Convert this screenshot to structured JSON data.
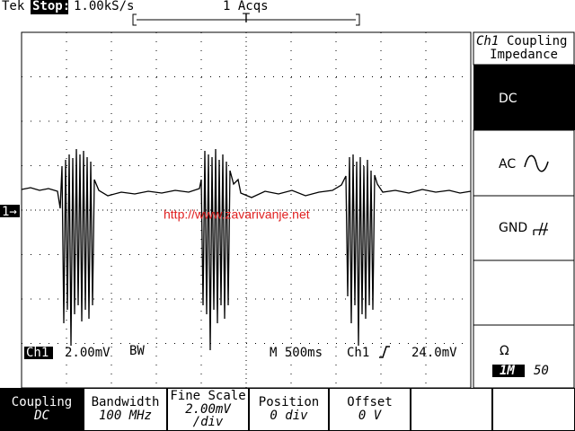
{
  "header": {
    "brand": "Tek",
    "state": "Stop:",
    "sample_rate": "1.00kS/s",
    "acquisitions": "1 Acqs",
    "trigger_marker": "T"
  },
  "channel_marker": "1→",
  "side_menu": {
    "title_channel": "Ch1",
    "title": "Coupling",
    "subtitle": "Impedance",
    "options": [
      "DC",
      "AC",
      "GND"
    ],
    "impedance_symbol": "Ω",
    "impedance_options": [
      "1M",
      "50"
    ]
  },
  "status": {
    "channel": "Ch1",
    "scale": "2.00mV",
    "bandwidth_flag": "BW",
    "timebase": "M 500ms",
    "trigger_channel": "Ch1",
    "trigger_level": "24.0mV"
  },
  "watermark": "http://www.zavarivanje.net",
  "bottom_menu": [
    {
      "label": "Coupling",
      "value": "DC"
    },
    {
      "label": "Bandwidth",
      "value": "100 MHz"
    },
    {
      "label": "Fine Scale",
      "value": "2.00mV",
      "unit": "/div"
    },
    {
      "label": "Position",
      "value": "0 div"
    },
    {
      "label": "Offset",
      "value": "0 V"
    }
  ]
}
